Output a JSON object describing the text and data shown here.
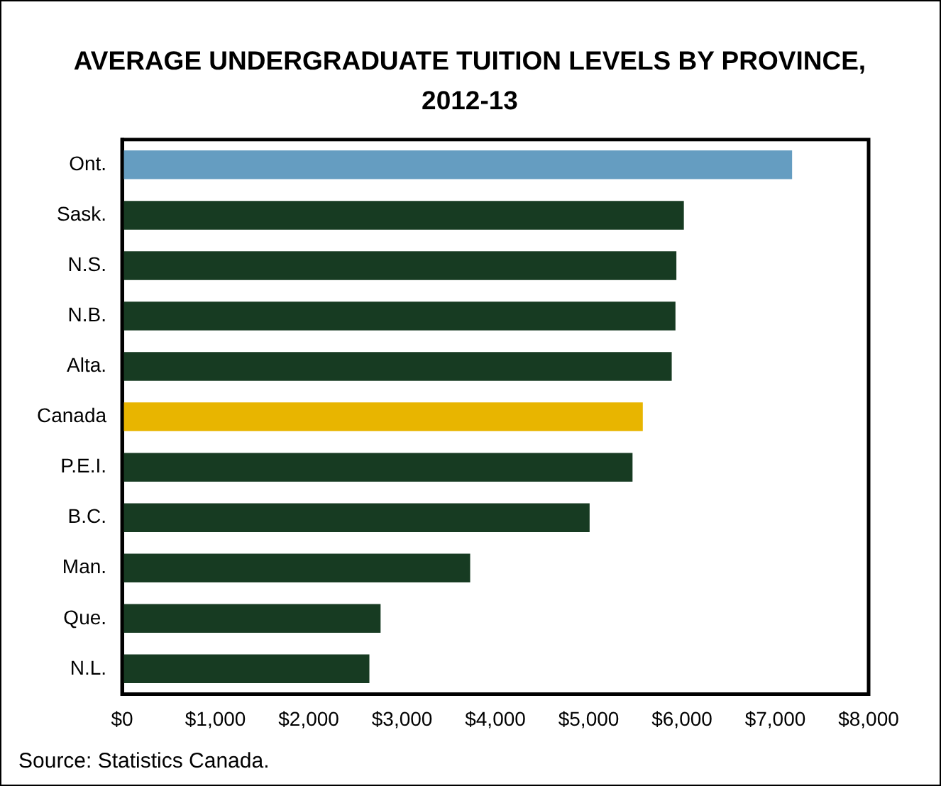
{
  "chart_data": {
    "type": "bar",
    "orientation": "horizontal",
    "title": "AVERAGE UNDERGRADUATE TUITION LEVELS BY PROVINCE, 2012-13",
    "categories": [
      "Ont.",
      "Sask.",
      "N.S.",
      "N.B.",
      "Alta.",
      "Canada",
      "P.E.I.",
      "B.C.",
      "Man.",
      "Que.",
      "N.L."
    ],
    "values": [
      7180,
      6020,
      5940,
      5930,
      5890,
      5580,
      5470,
      5010,
      3730,
      2770,
      2650
    ],
    "colors": [
      "#659dc1",
      "#173b22",
      "#173b22",
      "#173b22",
      "#173b22",
      "#e8b500",
      "#173b22",
      "#173b22",
      "#173b22",
      "#173b22",
      "#173b22"
    ],
    "xlim": [
      0,
      8000
    ],
    "xticks": [
      {
        "value": 0,
        "label": "$0"
      },
      {
        "value": 1000,
        "label": "$1,000"
      },
      {
        "value": 2000,
        "label": "$2,000"
      },
      {
        "value": 3000,
        "label": "$3,000"
      },
      {
        "value": 4000,
        "label": "$4,000"
      },
      {
        "value": 5000,
        "label": "$5,000"
      },
      {
        "value": 6000,
        "label": "$6,000"
      },
      {
        "value": 7000,
        "label": "$7,000"
      },
      {
        "value": 8000,
        "label": "$8,000"
      }
    ],
    "grid": false,
    "legend": false,
    "annotations": [
      "Source: Statistics Canada."
    ]
  }
}
